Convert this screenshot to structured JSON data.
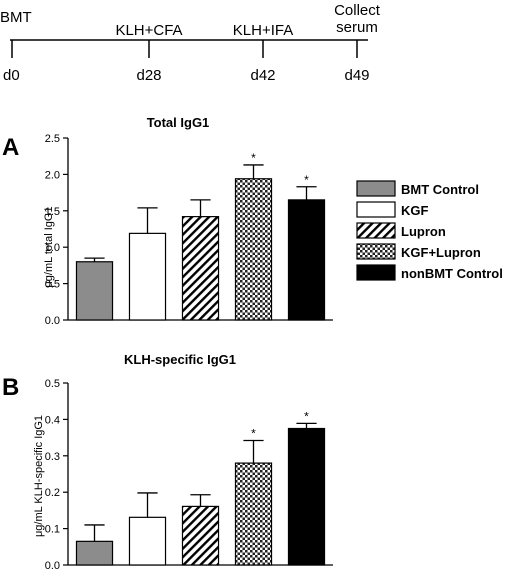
{
  "timeline": {
    "events": [
      {
        "day": 0,
        "top": "BMT",
        "bottom": "d0"
      },
      {
        "day": 28,
        "top": "KLH+CFA",
        "bottom": "d28"
      },
      {
        "day": 42,
        "top": "KLH+IFA",
        "bottom": "d42"
      },
      {
        "day": 49,
        "top": "Collect serum",
        "bottom": "d49"
      }
    ]
  },
  "legend": [
    {
      "label": "BMT Control",
      "pattern": "gray"
    },
    {
      "label": "KGF",
      "pattern": "white"
    },
    {
      "label": "Lupron",
      "pattern": "hatch"
    },
    {
      "label": "KGF+Lupron",
      "pattern": "checker"
    },
    {
      "label": "nonBMT Control",
      "pattern": "black"
    }
  ],
  "chart_data": [
    {
      "panel": "A",
      "type": "bar",
      "title": "Total IgG1",
      "ylabel": "μg/mL total IgG1",
      "ylim": [
        0,
        2.5
      ],
      "yticks": [
        0.0,
        0.5,
        1.0,
        1.5,
        2.0,
        2.5
      ],
      "ytick_labels": [
        "0.0",
        "0.5",
        "1.0",
        "1.5",
        "2.0",
        "2.5"
      ],
      "categories": [
        "BMT Control",
        "KGF",
        "Lupron",
        "KGF+Lupron",
        "nonBMT Control"
      ],
      "values": [
        0.8,
        1.19,
        1.42,
        1.94,
        1.65
      ],
      "errors": [
        0.05,
        0.35,
        0.23,
        0.19,
        0.18
      ],
      "significant": [
        false,
        false,
        false,
        true,
        true
      ],
      "star": "*"
    },
    {
      "panel": "B",
      "type": "bar",
      "title": "KLH-specific IgG1",
      "ylabel": "μg/mL KLH-specific IgG1",
      "ylim": [
        0,
        0.5
      ],
      "yticks": [
        0.0,
        0.1,
        0.2,
        0.3,
        0.4,
        0.5
      ],
      "ytick_labels": [
        "0.0",
        "0.1",
        "0.2",
        "0.3",
        "0.4",
        "0.5"
      ],
      "categories": [
        "BMT Control",
        "KGF",
        "Lupron",
        "KGF+Lupron",
        "nonBMT Control"
      ],
      "values": [
        0.065,
        0.131,
        0.161,
        0.28,
        0.375
      ],
      "errors": [
        0.045,
        0.067,
        0.032,
        0.062,
        0.014
      ],
      "significant": [
        false,
        false,
        false,
        true,
        true
      ],
      "star": "*"
    }
  ]
}
